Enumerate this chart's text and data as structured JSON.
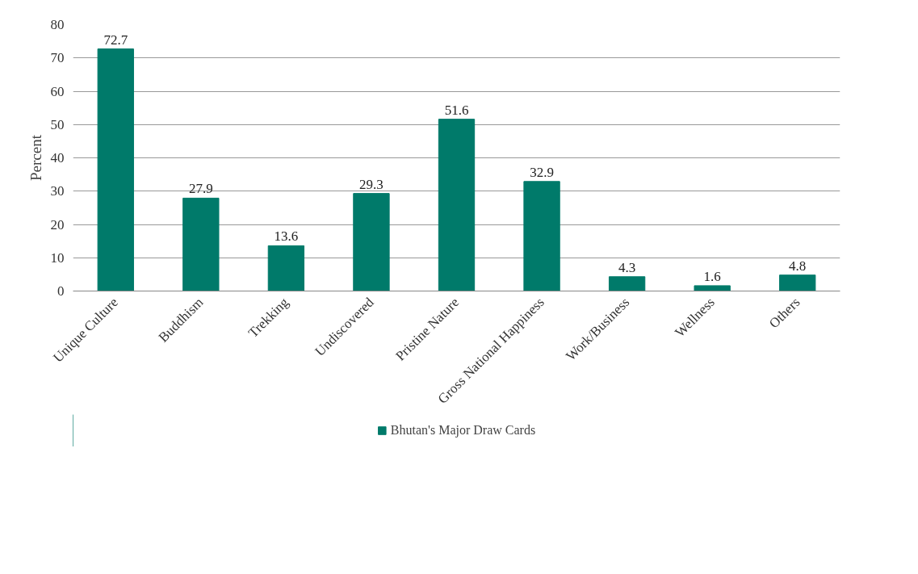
{
  "chart_data": {
    "type": "bar",
    "ylabel": "Percent",
    "categories": [
      "Unique Culture",
      "Buddhism",
      "Trekking",
      "Undiscovered",
      "Pristine Nature",
      "Gross National Happiness",
      "Work/Business",
      "Wellness",
      "Others"
    ],
    "series": [
      {
        "name": "Bhutan's Major Draw Cards",
        "color": "#007a6a",
        "values": [
          72.7,
          27.9,
          13.6,
          29.3,
          51.6,
          32.9,
          4.3,
          1.6,
          4.8
        ]
      }
    ],
    "ylim": [
      0,
      80
    ],
    "yticks": [
      0,
      10,
      20,
      30,
      40,
      50,
      60,
      70,
      80
    ],
    "grid": "y",
    "legend": "bottom",
    "data_labels": true
  }
}
